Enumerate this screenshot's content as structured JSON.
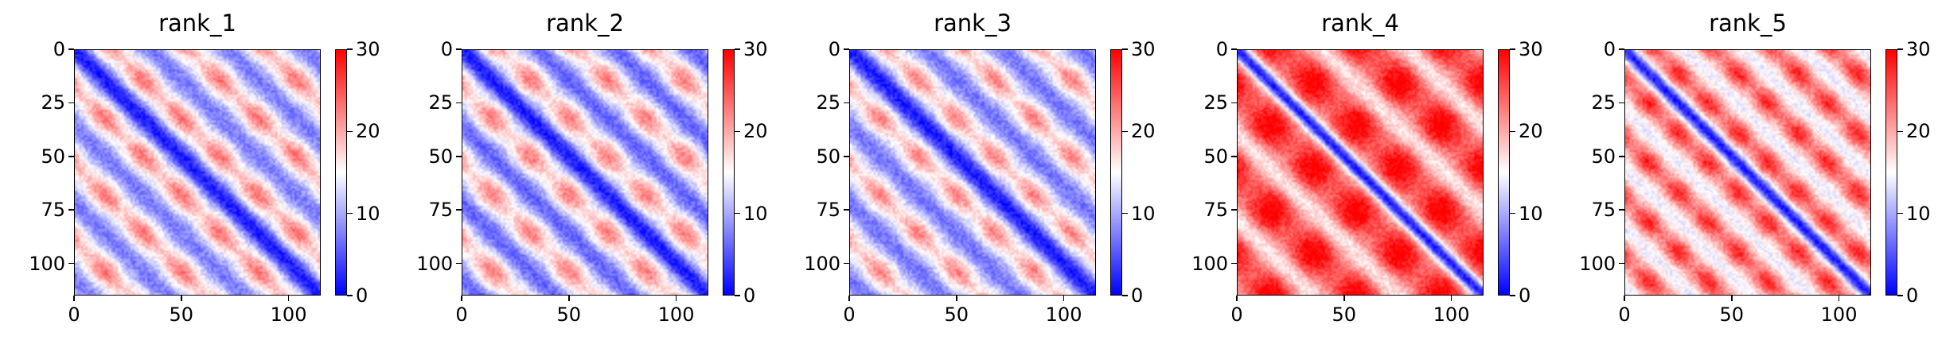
{
  "chart_data": [
    {
      "type": "heatmap",
      "title": "rank_1",
      "n": 115,
      "xticks": [
        0,
        50,
        100
      ],
      "yticks": [
        0,
        25,
        50,
        75,
        100
      ],
      "xlim": [
        0,
        115
      ],
      "ylim": [
        115,
        0
      ],
      "colorbar": {
        "ticks": [
          0,
          10,
          20,
          30
        ],
        "range": [
          0,
          30
        ],
        "colormap": "bwr"
      },
      "pattern": {
        "period": 36,
        "bg": 20,
        "band_width": 4,
        "offdiag_strength": 0.85
      }
    },
    {
      "type": "heatmap",
      "title": "rank_2",
      "n": 115,
      "xticks": [
        0,
        50,
        100
      ],
      "yticks": [
        0,
        25,
        50,
        75,
        100
      ],
      "xlim": [
        0,
        115
      ],
      "ylim": [
        115,
        0
      ],
      "colorbar": {
        "ticks": [
          0,
          10,
          20,
          30
        ],
        "range": [
          0,
          30
        ],
        "colormap": "bwr"
      },
      "pattern": {
        "period": 36,
        "bg": 18,
        "band_width": 3.5,
        "offdiag_strength": 0.9
      }
    },
    {
      "type": "heatmap",
      "title": "rank_3",
      "n": 115,
      "xticks": [
        0,
        50,
        100
      ],
      "yticks": [
        0,
        25,
        50,
        75,
        100
      ],
      "xlim": [
        0,
        115
      ],
      "ylim": [
        115,
        0
      ],
      "colorbar": {
        "ticks": [
          0,
          10,
          20,
          30
        ],
        "range": [
          0,
          30
        ],
        "colormap": "bwr"
      },
      "pattern": {
        "period": 36,
        "bg": 19,
        "band_width": 4,
        "offdiag_strength": 0.85
      }
    },
    {
      "type": "heatmap",
      "title": "rank_4",
      "n": 115,
      "xticks": [
        0,
        50,
        100
      ],
      "yticks": [
        0,
        25,
        50,
        75,
        100
      ],
      "xlim": [
        0,
        115
      ],
      "ylim": [
        115,
        0
      ],
      "colorbar": {
        "ticks": [
          0,
          10,
          20,
          30
        ],
        "range": [
          0,
          30
        ],
        "colormap": "bwr"
      },
      "pattern": {
        "period": 40,
        "bg": 25,
        "band_width": 3,
        "offdiag_strength": 0.45
      }
    },
    {
      "type": "heatmap",
      "title": "rank_5",
      "n": 115,
      "xticks": [
        0,
        50,
        100
      ],
      "yticks": [
        0,
        25,
        50,
        75,
        100
      ],
      "xlim": [
        0,
        115
      ],
      "ylim": [
        115,
        0
      ],
      "colorbar": {
        "ticks": [
          0,
          10,
          20,
          30
        ],
        "range": [
          0,
          30
        ],
        "colormap": "bwr"
      },
      "pattern": {
        "period": 28,
        "bg": 24,
        "band_width": 3,
        "offdiag_strength": 0.55
      }
    }
  ]
}
